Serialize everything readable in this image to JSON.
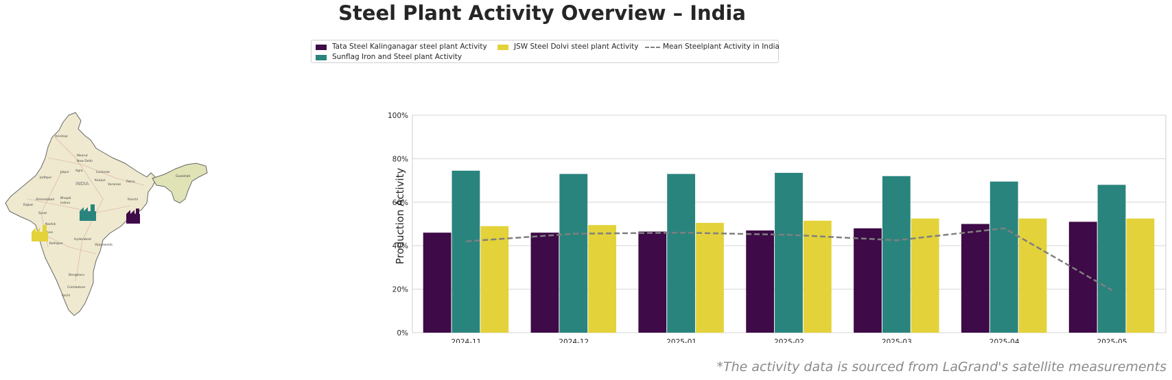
{
  "title": "Steel Plant Activity Overview – India",
  "footnote": "*The activity data is sourced from LaGrand's satellite measurements",
  "legend": {
    "tata": "Tata Steel Kalinganagar steel plant Activity",
    "sunflag": "Sunflag Iron and Steel plant Activity",
    "jsw": "JSW Steel Dolvi steel plant Activity",
    "mean": "Mean Steelplant Activity in India"
  },
  "map": {
    "labels": [
      "INDIA",
      "Amritsar",
      "New Delhi",
      "Meerut",
      "Jaipur",
      "Agra",
      "Lucknow",
      "Kanpur",
      "Varanasi",
      "Patna",
      "Ranchi",
      "Jodhpur",
      "Ahmedabad",
      "Bhopal",
      "Indore",
      "Rajkot",
      "Surat",
      "Nashik",
      "Pune",
      "Hyderabad",
      "Kolhapur",
      "Vijayawada",
      "Bengaluru",
      "Coimbatore",
      "Kochi",
      "Guwahati"
    ]
  },
  "chart_data": {
    "type": "bar",
    "categories": [
      "2024-11",
      "2024-12",
      "2025-01",
      "2025-02",
      "2025-03",
      "2025-04",
      "2025-05"
    ],
    "series": [
      {
        "name": "Tata Steel Kalinganagar steel plant Activity",
        "color": "#3e0a47",
        "values": [
          46,
          46,
          46.5,
          47,
          48,
          50,
          51
        ]
      },
      {
        "name": "Sunflag Iron and Steel plant Activity",
        "color": "#2a847e",
        "values": [
          74.5,
          73,
          73,
          73.5,
          72,
          69.5,
          68
        ]
      },
      {
        "name": "JSW Steel Dolvi steel plant Activity",
        "color": "#e3d23a",
        "values": [
          49,
          49.5,
          50.5,
          51.5,
          52.5,
          52.5,
          52.5
        ]
      }
    ],
    "line": {
      "name": "Mean Steelplant Activity in India",
      "color": "#7f7f7f",
      "values": [
        42,
        45.5,
        46,
        45,
        42.5,
        48,
        19.5
      ]
    },
    "ylabel": "Production Activity",
    "xlabel": "",
    "ylim": [
      0,
      100
    ],
    "yticks": [
      "0%",
      "20%",
      "40%",
      "60%",
      "80%",
      "100%"
    ],
    "grid": true,
    "legend_position": "top-center"
  }
}
